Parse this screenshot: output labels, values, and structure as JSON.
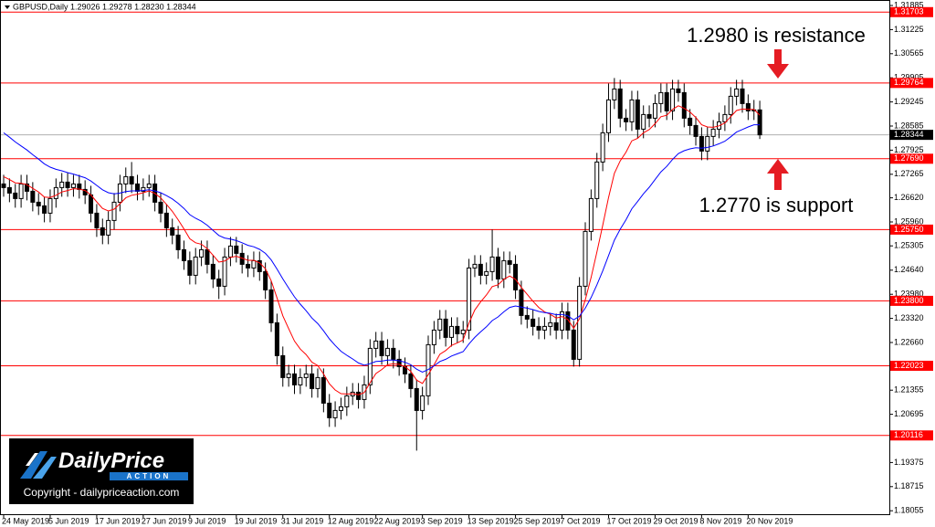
{
  "chart_data": {
    "type": "candlestick",
    "title": "GBPUSD,Daily  1.29026 1.29278 1.28230 1.28344",
    "annotations": [
      "1.2980 is resistance",
      "1.2770 is support"
    ],
    "watermark": {
      "brand_first": "Daily",
      "brand_second": "Price",
      "brand_sub": "ACTION",
      "copyright": "Copyright - dailypriceaction.com"
    },
    "bull_color": "#ffffff",
    "bear_color": "#000000",
    "level_color": "#ff0000",
    "current_price": 1.28344,
    "current_price_color": "#000000",
    "levels": [
      1.31703,
      1.29764,
      {
        "value": 1.2769,
        "label": "1.27690"
      },
      {
        "value": 1.2575,
        "label": "1.25750"
      },
      {
        "value": 1.238,
        "label": "1.23800"
      },
      1.22023,
      1.20116
    ],
    "ylim": [
      1.1796,
      1.32035
    ],
    "yticks": [
      1.31885,
      1.31225,
      1.30565,
      1.29905,
      1.29245,
      1.28585,
      1.27925,
      1.27265,
      {
        "value": 1.2662,
        "label": "1.26620"
      },
      {
        "value": 1.2596,
        "label": "1.25960"
      },
      1.25305,
      {
        "value": 1.2464,
        "label": "1.24640"
      },
      {
        "value": 1.2398,
        "label": "1.23980"
      },
      {
        "value": 1.2332,
        "label": "1.23320"
      },
      {
        "value": 1.2266,
        "label": "1.22660"
      },
      1.21355,
      1.20695,
      1.19375,
      1.18715,
      1.18055
    ],
    "categories": [
      "24 May 2019",
      null,
      null,
      null,
      null,
      null,
      null,
      null,
      "5 Jun 2019",
      null,
      null,
      null,
      null,
      null,
      null,
      null,
      "17 Jun 2019",
      null,
      null,
      null,
      null,
      null,
      null,
      null,
      "27 Jun 2019",
      null,
      null,
      null,
      null,
      null,
      null,
      null,
      "9 Jul 2019",
      null,
      null,
      null,
      null,
      null,
      null,
      null,
      "19 Jul 2019",
      null,
      null,
      null,
      null,
      null,
      null,
      null,
      "31 Jul 2019",
      null,
      null,
      null,
      null,
      null,
      null,
      null,
      "12 Aug 2019",
      null,
      null,
      null,
      null,
      null,
      null,
      null,
      "22 Aug 2019",
      null,
      null,
      null,
      null,
      null,
      null,
      null,
      "3 Sep 2019",
      null,
      null,
      null,
      null,
      null,
      null,
      null,
      "13 Sep 2019",
      null,
      null,
      null,
      null,
      null,
      null,
      null,
      "25 Sep 2019",
      null,
      null,
      null,
      null,
      null,
      null,
      null,
      "7 Oct 2019",
      null,
      null,
      null,
      null,
      null,
      null,
      null,
      "17 Oct 2019",
      null,
      null,
      null,
      null,
      null,
      null,
      null,
      "29 Oct 2019",
      null,
      null,
      null,
      null,
      null,
      null,
      null,
      "8 Nov 2019",
      null,
      null,
      null,
      null,
      null,
      null,
      null,
      "20 Nov 2019",
      null,
      null
    ],
    "open": [
      1.27,
      1.269,
      1.2675,
      1.266,
      1.27,
      1.268,
      1.265,
      1.264,
      1.262,
      1.266,
      1.269,
      1.2705,
      1.269,
      1.27,
      1.2685,
      1.267,
      1.262,
      1.258,
      1.256,
      1.26,
      1.265,
      1.27,
      1.272,
      1.27,
      1.268,
      1.269,
      1.27,
      1.265,
      1.262,
      1.258,
      1.256,
      1.252,
      1.249,
      1.245,
      1.25,
      1.252,
      1.248,
      1.244,
      1.242,
      1.25,
      1.253,
      1.251,
      1.248,
      1.247,
      1.249,
      1.246,
      1.241,
      1.232,
      1.223,
      1.217,
      1.218,
      1.215,
      1.217,
      1.218,
      1.214,
      1.217,
      1.21,
      1.206,
      1.208,
      1.209,
      1.212,
      1.213,
      1.211,
      1.215,
      1.225,
      1.227,
      1.223,
      1.225,
      1.222,
      1.22,
      1.218,
      1.214,
      1.208,
      1.212,
      1.226,
      1.23,
      1.233,
      1.228,
      1.231,
      1.229,
      1.23,
      1.247,
      1.248,
      1.245,
      1.246,
      1.25,
      1.244,
      1.249,
      1.248,
      1.241,
      1.234,
      1.233,
      1.231,
      1.23,
      1.231,
      1.232,
      1.23,
      1.235,
      1.23,
      1.222,
      1.242,
      1.257,
      1.266,
      1.276,
      1.284,
      1.293,
      1.296,
      1.288,
      1.287,
      1.293,
      1.285,
      1.289,
      1.288,
      1.292,
      1.295,
      1.29,
      1.296,
      1.295,
      1.288,
      1.286,
      1.283,
      1.279,
      1.283,
      1.285,
      1.287,
      1.289,
      1.294,
      1.296,
      1.292,
      1.29,
      1.29026
    ],
    "high": [
      1.2725,
      1.2715,
      1.27,
      1.2725,
      1.2725,
      1.2705,
      1.2675,
      1.2665,
      1.2685,
      1.2715,
      1.273,
      1.273,
      1.2725,
      1.2725,
      1.271,
      1.2695,
      1.2645,
      1.2605,
      1.2625,
      1.2675,
      1.2725,
      1.2745,
      1.276,
      1.2725,
      1.2715,
      1.2725,
      1.2725,
      1.2675,
      1.2645,
      1.2605,
      1.2585,
      1.2545,
      1.2515,
      1.2525,
      1.2545,
      1.2545,
      1.2505,
      1.2465,
      1.2525,
      1.2555,
      1.2555,
      1.2535,
      1.2505,
      1.2515,
      1.2515,
      1.2485,
      1.2435,
      1.2345,
      1.2255,
      1.2205,
      1.2205,
      1.2195,
      1.2205,
      1.2205,
      1.2195,
      1.2195,
      1.2125,
      1.2105,
      1.2115,
      1.2145,
      1.2155,
      1.2155,
      1.2175,
      1.2275,
      1.2295,
      1.2295,
      1.2275,
      1.2275,
      1.2245,
      1.2225,
      1.2205,
      1.2165,
      1.2145,
      1.2285,
      1.2325,
      1.2355,
      1.2355,
      1.2335,
      1.2335,
      1.2325,
      1.2495,
      1.2505,
      1.2505,
      1.2485,
      1.2575,
      1.2525,
      1.2515,
      1.2515,
      1.2505,
      1.2435,
      1.2365,
      1.2355,
      1.2335,
      1.2335,
      1.2345,
      1.2345,
      1.2375,
      1.2375,
      1.2325,
      1.2445,
      1.2595,
      1.2685,
      1.2785,
      1.2865,
      1.2975,
      1.299,
      1.2985,
      1.2905,
      1.2955,
      1.2955,
      1.2915,
      1.2915,
      1.2945,
      1.2975,
      1.2975,
      1.2985,
      1.2985,
      1.2975,
      1.2905,
      1.2885,
      1.2855,
      1.2855,
      1.2875,
      1.2895,
      1.2915,
      1.2965,
      1.2985,
      1.2985,
      1.2945,
      1.293,
      1.29278
    ],
    "low": [
      1.2665,
      1.265,
      1.2635,
      1.2635,
      1.2655,
      1.2625,
      1.2615,
      1.2595,
      1.2595,
      1.2635,
      1.2665,
      1.2665,
      1.2665,
      1.266,
      1.2645,
      1.2595,
      1.2555,
      1.2535,
      1.2535,
      1.2575,
      1.2625,
      1.2675,
      1.2675,
      1.2655,
      1.2655,
      1.2665,
      1.2625,
      1.2595,
      1.2555,
      1.2535,
      1.2495,
      1.2465,
      1.2425,
      1.2425,
      1.2475,
      1.2455,
      1.2415,
      1.2385,
      1.2395,
      1.2475,
      1.2485,
      1.2455,
      1.2445,
      1.2445,
      1.2435,
      1.2385,
      1.2295,
      1.2205,
      1.2145,
      1.2145,
      1.2125,
      1.2125,
      1.2145,
      1.2115,
      1.2115,
      1.2075,
      1.2035,
      1.2035,
      1.2055,
      1.2065,
      1.2095,
      1.2085,
      1.2085,
      1.2125,
      1.2225,
      1.2205,
      1.2205,
      1.2195,
      1.2175,
      1.2155,
      1.2115,
      1.197,
      1.2055,
      1.2095,
      1.2235,
      1.2275,
      1.2255,
      1.2255,
      1.2265,
      1.2265,
      1.2275,
      1.2445,
      1.2425,
      1.2425,
      1.2435,
      1.2415,
      1.2415,
      1.2455,
      1.2385,
      1.2315,
      1.2305,
      1.2285,
      1.2275,
      1.2275,
      1.2285,
      1.2275,
      1.2275,
      1.2275,
      1.22,
      1.22,
      1.2395,
      1.2545,
      1.2635,
      1.2735,
      1.2815,
      1.2905,
      1.2855,
      1.2845,
      1.2845,
      1.2825,
      1.2825,
      1.2855,
      1.2855,
      1.2895,
      1.2875,
      1.2875,
      1.2925,
      1.2855,
      1.2835,
      1.2805,
      1.2765,
      1.2765,
      1.2805,
      1.2825,
      1.2845,
      1.2865,
      1.2915,
      1.2895,
      1.2875,
      1.2875,
      1.2823
    ],
    "close": [
      1.269,
      1.2675,
      1.266,
      1.27,
      1.268,
      1.265,
      1.264,
      1.262,
      1.266,
      1.269,
      1.2705,
      1.269,
      1.27,
      1.2685,
      1.267,
      1.262,
      1.258,
      1.256,
      1.26,
      1.265,
      1.27,
      1.272,
      1.27,
      1.268,
      1.269,
      1.27,
      1.265,
      1.262,
      1.258,
      1.256,
      1.252,
      1.249,
      1.245,
      1.25,
      1.252,
      1.248,
      1.244,
      1.242,
      1.25,
      1.253,
      1.251,
      1.248,
      1.247,
      1.249,
      1.246,
      1.241,
      1.232,
      1.223,
      1.217,
      1.218,
      1.215,
      1.217,
      1.218,
      1.214,
      1.217,
      1.21,
      1.206,
      1.208,
      1.209,
      1.212,
      1.213,
      1.211,
      1.215,
      1.225,
      1.227,
      1.223,
      1.225,
      1.222,
      1.22,
      1.218,
      1.214,
      1.208,
      1.212,
      1.226,
      1.23,
      1.233,
      1.228,
      1.231,
      1.229,
      1.23,
      1.247,
      1.248,
      1.245,
      1.246,
      1.25,
      1.244,
      1.249,
      1.248,
      1.241,
      1.234,
      1.233,
      1.231,
      1.23,
      1.231,
      1.232,
      1.23,
      1.235,
      1.23,
      1.222,
      1.242,
      1.257,
      1.266,
      1.276,
      1.284,
      1.293,
      1.296,
      1.288,
      1.287,
      1.293,
      1.285,
      1.289,
      1.288,
      1.292,
      1.295,
      1.29,
      1.296,
      1.295,
      1.288,
      1.286,
      1.283,
      1.279,
      1.283,
      1.285,
      1.287,
      1.289,
      1.294,
      1.296,
      1.292,
      1.29,
      1.29026,
      1.28344
    ],
    "moving_averages": [
      {
        "color": "#ff0000",
        "values": [
          1.272,
          1.2712,
          1.2703,
          1.2702,
          1.2698,
          1.2688,
          1.2678,
          1.2664,
          1.2663,
          1.2669,
          1.2678,
          1.2682,
          1.2687,
          1.2686,
          1.2682,
          1.267,
          1.2651,
          1.2633,
          1.2626,
          1.2631,
          1.2646,
          1.2662,
          1.2669,
          1.2672,
          1.2676,
          1.2681,
          1.2674,
          1.2662,
          1.2644,
          1.2625,
          1.2602,
          1.2577,
          1.255,
          1.2539,
          1.2535,
          1.2523,
          1.2505,
          1.2486,
          1.2489,
          1.2499,
          1.2502,
          1.2497,
          1.2491,
          1.2491,
          1.2484,
          1.2468,
          1.2435,
          1.2388,
          1.2339,
          1.2304,
          1.227,
          1.2248,
          1.2233,
          1.2212,
          1.2203,
          1.218,
          1.2153,
          1.2136,
          1.2126,
          1.2125,
          1.2126,
          1.2123,
          1.2129,
          1.2156,
          1.2181,
          1.2192,
          1.2205,
          1.2208,
          1.2206,
          1.22,
          1.2187,
          1.2163,
          1.2154,
          1.2178,
          1.2205,
          1.2234,
          1.2244,
          1.2258,
          1.2265,
          1.2273,
          1.2319,
          1.2355,
          1.2377,
          1.2396,
          1.2419,
          1.2424,
          1.2439,
          1.2448,
          1.2439,
          1.2417,
          1.2398,
          1.2379,
          1.2362,
          1.235,
          1.2343,
          1.2333,
          1.2337,
          1.2329,
          1.2305,
          1.2331,
          1.2383,
          1.2444,
          1.2514,
          1.2587,
          1.2663,
          1.2729,
          1.2763,
          1.2787,
          1.2818,
          1.2825,
          1.284,
          1.2849,
          1.2865,
          1.2884,
          1.2888,
          1.2904,
          1.2914,
          1.2907,
          1.2897,
          1.2882,
          1.2862,
          1.2856,
          1.2855,
          1.2859,
          1.2867,
          1.2884,
          1.2901,
          1.2905,
          1.2904,
          1.2904,
          1.2888
        ]
      },
      {
        "color": "#0000ff",
        "values": [
          1.284,
          1.2828,
          1.2815,
          1.2804,
          1.2793,
          1.278,
          1.2768,
          1.2755,
          1.2746,
          1.274,
          1.2736,
          1.2731,
          1.2727,
          1.2722,
          1.2717,
          1.2708,
          1.2696,
          1.2684,
          1.2676,
          1.2673,
          1.2675,
          1.2679,
          1.2681,
          1.2681,
          1.2682,
          1.2684,
          1.2681,
          1.2676,
          1.2668,
          1.2659,
          1.2647,
          1.2633,
          1.2616,
          1.2606,
          1.2598,
          1.2587,
          1.2573,
          1.2559,
          1.2552,
          1.2549,
          1.2545,
          1.2539,
          1.2532,
          1.2528,
          1.2521,
          1.251,
          1.2492,
          1.2467,
          1.244,
          1.2415,
          1.2391,
          1.2371,
          1.2353,
          1.2333,
          1.2318,
          1.2298,
          1.2276,
          1.2258,
          1.2242,
          1.2231,
          1.2221,
          1.221,
          1.2204,
          1.2208,
          1.2214,
          1.2215,
          1.2218,
          1.2218,
          1.2216,
          1.2212,
          1.2205,
          1.2193,
          1.2185,
          1.2192,
          1.2202,
          1.2214,
          1.222,
          1.2229,
          1.2235,
          1.2241,
          1.2262,
          1.228,
          1.2295,
          1.2309,
          1.2326,
          1.2336,
          1.235,
          1.2362,
          1.2366,
          1.2363,
          1.236,
          1.2356,
          1.2351,
          1.2348,
          1.2346,
          1.2342,
          1.2343,
          1.2339,
          1.2328,
          1.2338,
          1.236,
          1.2389,
          1.2424,
          1.2462,
          1.2504,
          1.2546,
          1.2576,
          1.2602,
          1.2632,
          1.2652,
          1.2673,
          1.2691,
          1.2712,
          1.2733,
          1.2748,
          1.2767,
          1.2783,
          1.2791,
          1.2796,
          1.2799,
          1.2798,
          1.28,
          1.2804,
          1.281,
          1.2817,
          1.2829,
          1.2842,
          1.2849,
          1.2856,
          1.2862,
          1.2862
        ]
      }
    ]
  }
}
